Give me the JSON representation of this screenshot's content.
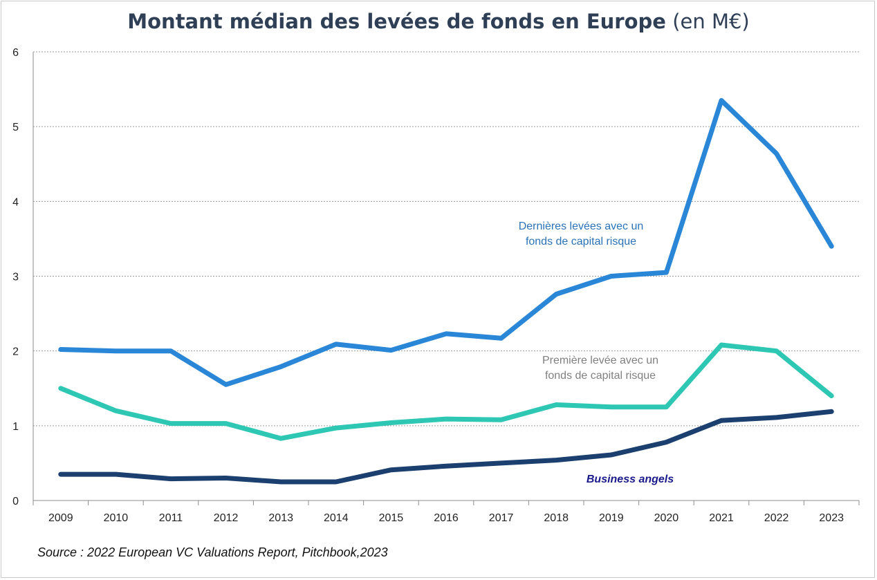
{
  "title": {
    "main": "Montant médian des levées de fonds en Europe",
    "unit": "(en M€)"
  },
  "source": "Source : 2022 European VC Valuations Report, Pitchbook,2023",
  "chart_data": {
    "type": "line",
    "x": [
      "2009",
      "2010",
      "2011",
      "2012",
      "2013",
      "2014",
      "2015",
      "2016",
      "2017",
      "2018",
      "2019",
      "2020",
      "2021",
      "2022",
      "2023"
    ],
    "ylim": [
      0,
      6
    ],
    "yticks": [
      0,
      1,
      2,
      3,
      4,
      5,
      6
    ],
    "grid": true,
    "xlabel": "",
    "ylabel": "",
    "series": [
      {
        "label_lines": [
          "Dernières levées  avec un",
          "fonds de capital risque"
        ],
        "color": "#2a86d6",
        "label_color": "#2a73b8",
        "values": [
          2.02,
          2.0,
          2.0,
          1.55,
          1.79,
          2.09,
          2.01,
          2.23,
          2.17,
          2.76,
          3.0,
          3.05,
          5.35,
          4.64,
          3.4
        ]
      },
      {
        "label_lines": [
          "Première levée avec un",
          "fonds de capital risque"
        ],
        "color": "#2ec7b3",
        "label_color": "#808080",
        "values": [
          1.5,
          1.2,
          1.03,
          1.03,
          0.83,
          0.97,
          1.04,
          1.09,
          1.08,
          1.28,
          1.25,
          1.25,
          2.08,
          2.0,
          1.4
        ]
      },
      {
        "label_lines": [
          "Business angels"
        ],
        "color": "#1b3f6e",
        "label_color": "#1a1a8c",
        "label_style": "italic-bold",
        "values": [
          0.35,
          0.35,
          0.29,
          0.3,
          0.25,
          0.25,
          0.41,
          0.46,
          0.5,
          0.54,
          0.61,
          0.78,
          1.07,
          1.11,
          1.19
        ]
      }
    ]
  }
}
